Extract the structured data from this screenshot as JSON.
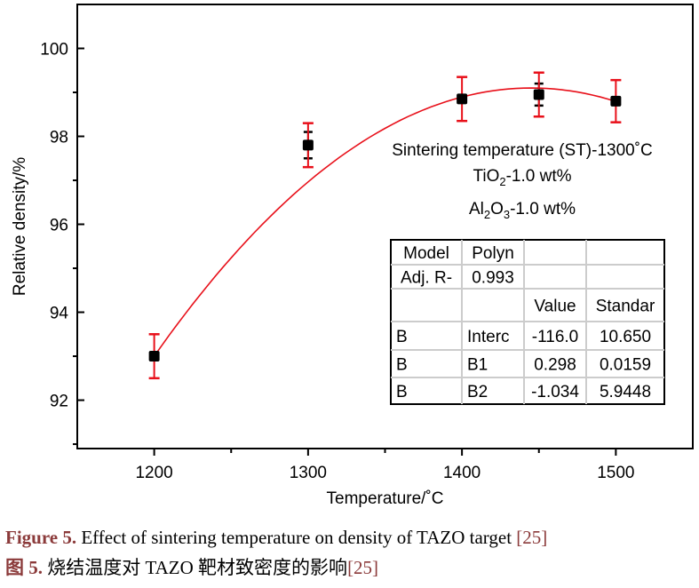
{
  "chart_data": {
    "type": "scatter",
    "xlabel": "Temperature/˚C",
    "ylabel": "Relative density/%",
    "xlim": [
      1150,
      1550
    ],
    "ylim": [
      90.9,
      101
    ],
    "xticks": [
      1200,
      1300,
      1400,
      1500
    ],
    "yticks": [
      92,
      94,
      96,
      98,
      100
    ],
    "grid": false,
    "points": [
      {
        "x": 1200,
        "y": 93.0,
        "err": 0.5,
        "err_inner": 0.0
      },
      {
        "x": 1300,
        "y": 97.8,
        "err": 0.5,
        "err_inner": 0.3
      },
      {
        "x": 1400,
        "y": 98.85,
        "err": 0.5,
        "err_inner": 0.0
      },
      {
        "x": 1450,
        "y": 98.95,
        "err": 0.5,
        "err_inner": 0.25
      },
      {
        "x": 1500,
        "y": 98.8,
        "err": 0.48,
        "err_inner": 0.0
      }
    ],
    "fit": {
      "type": "polynomial, order 2",
      "x_range": [
        1200,
        1500
      ]
    },
    "colors": {
      "points": "#000000",
      "error_bars": "#e8101a",
      "fit_line": "#e8101a"
    },
    "annotations": {
      "line1": "Sintering temperature (ST)-1300˚C",
      "tio2": {
        "a": "TiO",
        "sub": "2",
        "b": "-1.0 wt%"
      },
      "al2o3": {
        "a": "Al",
        "sub1": "2",
        "b": "O",
        "sub2": "3",
        "c": "-1.0 wt%"
      }
    },
    "table": [
      [
        "Model",
        "Polyn",
        "",
        ""
      ],
      [
        "Adj. R-",
        "0.993",
        "",
        ""
      ],
      [
        "",
        "",
        "Value",
        "Standar"
      ],
      [
        "B",
        "Interc",
        "-116.0",
        "10.650"
      ],
      [
        "B",
        "B1",
        "0.298",
        "0.0159"
      ],
      [
        "B",
        "B2",
        "-1.034",
        "5.9448"
      ]
    ]
  },
  "caption": {
    "en_label": "Figure 5.",
    "en_text": " Effect of sintering temperature on density of TAZO target ",
    "en_ref": "[25]",
    "zh_label": "图 5.",
    "zh_text": "  烧结温度对 TAZO 靶材致密度的影响",
    "zh_ref": "[25]"
  }
}
